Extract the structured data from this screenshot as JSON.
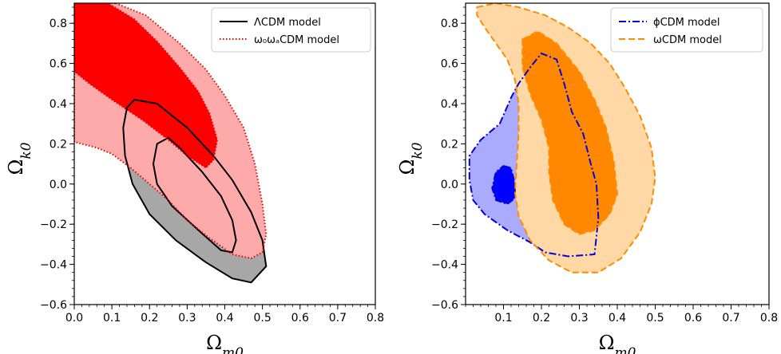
{
  "chart_data": [
    {
      "type": "contour",
      "xlabel": "Ω_m0",
      "ylabel": "Ω_k0",
      "xlim": [
        0.0,
        0.8
      ],
      "ylim": [
        -0.6,
        0.9
      ],
      "xticks": [
        "0.0",
        "0.1",
        "0.2",
        "0.3",
        "0.4",
        "0.5",
        "0.6",
        "0.7",
        "0.8"
      ],
      "yticks": [
        "−0.6",
        "−0.4",
        "−0.2",
        "0.0",
        "0.2",
        "0.4",
        "0.6",
        "0.8"
      ],
      "legend": [
        "ΛCDM model",
        "ω₀ωₐCDM model"
      ],
      "legend_position": "top-right",
      "series": [
        {
          "name": "ΛCDM model",
          "style": "solid",
          "color": "#000000",
          "contours": [
            {
              "level": "1σ",
              "fill": null,
              "points": [
                [
                  0.25,
                  0.23
                ],
                [
                  0.28,
                  0.18
                ],
                [
                  0.34,
                  0.06
                ],
                [
                  0.39,
                  -0.06
                ],
                [
                  0.42,
                  -0.18
                ],
                [
                  0.43,
                  -0.28
                ],
                [
                  0.42,
                  -0.34
                ],
                [
                  0.39,
                  -0.33
                ],
                [
                  0.33,
                  -0.23
                ],
                [
                  0.26,
                  -0.11
                ],
                [
                  0.22,
                  0.0
                ],
                [
                  0.21,
                  0.1
                ],
                [
                  0.22,
                  0.2
                ]
              ]
            },
            {
              "level": "2σ",
              "fill": "#a7a7a7",
              "points": [
                [
                  0.16,
                  0.42
                ],
                [
                  0.22,
                  0.4
                ],
                [
                  0.3,
                  0.28
                ],
                [
                  0.37,
                  0.14
                ],
                [
                  0.42,
                  0.02
                ],
                [
                  0.47,
                  -0.14
                ],
                [
                  0.5,
                  -0.28
                ],
                [
                  0.51,
                  -0.41
                ],
                [
                  0.47,
                  -0.49
                ],
                [
                  0.42,
                  -0.47
                ],
                [
                  0.35,
                  -0.39
                ],
                [
                  0.27,
                  -0.28
                ],
                [
                  0.2,
                  -0.15
                ],
                [
                  0.155,
                  0.0
                ],
                [
                  0.135,
                  0.14
                ],
                [
                  0.13,
                  0.28
                ],
                [
                  0.14,
                  0.38
                ]
              ]
            }
          ]
        },
        {
          "name": "ω₀ωₐCDM model",
          "style": "dotted",
          "color": "#e80000",
          "contours": [
            {
              "level": "1σ",
              "fill": "#ff0000",
              "points": [
                [
                  0.0,
                  0.9
                ],
                [
                  0.09,
                  0.9
                ],
                [
                  0.16,
                  0.82
                ],
                [
                  0.22,
                  0.71
                ],
                [
                  0.28,
                  0.58
                ],
                [
                  0.33,
                  0.46
                ],
                [
                  0.36,
                  0.35
                ],
                [
                  0.38,
                  0.22
                ],
                [
                  0.37,
                  0.12
                ],
                [
                  0.35,
                  0.08
                ],
                [
                  0.3,
                  0.14
                ],
                [
                  0.25,
                  0.22
                ],
                [
                  0.18,
                  0.32
                ],
                [
                  0.1,
                  0.42
                ],
                [
                  0.04,
                  0.5
                ],
                [
                  0.0,
                  0.56
                ]
              ]
            },
            {
              "level": "2σ",
              "fill": "#ffaaaa",
              "points": [
                [
                  0.11,
                  0.9
                ],
                [
                  0.19,
                  0.84
                ],
                [
                  0.28,
                  0.7
                ],
                [
                  0.35,
                  0.57
                ],
                [
                  0.4,
                  0.44
                ],
                [
                  0.45,
                  0.28
                ],
                [
                  0.48,
                  0.1
                ],
                [
                  0.5,
                  -0.1
                ],
                [
                  0.51,
                  -0.25
                ],
                [
                  0.5,
                  -0.34
                ],
                [
                  0.47,
                  -0.37
                ],
                [
                  0.42,
                  -0.35
                ],
                [
                  0.36,
                  -0.27
                ],
                [
                  0.3,
                  -0.18
                ],
                [
                  0.25,
                  -0.08
                ],
                [
                  0.2,
                  0.0
                ],
                [
                  0.15,
                  0.08
                ],
                [
                  0.1,
                  0.15
                ],
                [
                  0.06,
                  0.18
                ],
                [
                  0.02,
                  0.2
                ],
                [
                  0.0,
                  0.21
                ],
                [
                  0.0,
                  0.9
                ]
              ]
            }
          ]
        }
      ]
    },
    {
      "type": "contour",
      "xlabel": "Ω_m0",
      "ylabel": "Ω_k0",
      "xlim": [
        0.0,
        0.8
      ],
      "ylim": [
        -0.6,
        0.9
      ],
      "xticks": [
        "0.1",
        "0.2",
        "0.3",
        "0.4",
        "0.5",
        "0.6",
        "0.7",
        "0.8"
      ],
      "yticks": [
        "−0.6",
        "−0.4",
        "−0.2",
        "0.0",
        "0.2",
        "0.4",
        "0.6",
        "0.8"
      ],
      "legend": [
        "ϕCDM model",
        "ωCDM model"
      ],
      "legend_position": "top-right",
      "series": [
        {
          "name": "ϕCDM model",
          "style": "dashdot",
          "color": "#0000dd",
          "contours": [
            {
              "level": "1σ",
              "fill": "#0000ff",
              "points": [
                [
                  0.1,
                  0.09
                ],
                [
                  0.12,
                  0.08
                ],
                [
                  0.13,
                  0.0
                ],
                [
                  0.13,
                  -0.07
                ],
                [
                  0.11,
                  -0.1
                ],
                [
                  0.08,
                  -0.08
                ],
                [
                  0.07,
                  -0.02
                ],
                [
                  0.08,
                  0.06
                ]
              ]
            },
            {
              "level": "2σ",
              "fill": "#aaaaff",
              "points": [
                [
                  0.09,
                  0.3
                ],
                [
                  0.12,
                  0.43
                ],
                [
                  0.14,
                  0.5
                ],
                [
                  0.17,
                  0.58
                ],
                [
                  0.2,
                  0.65
                ],
                [
                  0.24,
                  0.62
                ],
                [
                  0.26,
                  0.5
                ],
                [
                  0.28,
                  0.36
                ],
                [
                  0.31,
                  0.25
                ],
                [
                  0.33,
                  0.1
                ],
                [
                  0.345,
                  0.0
                ],
                [
                  0.35,
                  -0.17
                ],
                [
                  0.34,
                  -0.35
                ],
                [
                  0.27,
                  -0.36
                ],
                [
                  0.21,
                  -0.34
                ],
                [
                  0.17,
                  -0.29
                ],
                [
                  0.11,
                  -0.23
                ],
                [
                  0.05,
                  -0.15
                ],
                [
                  0.02,
                  -0.08
                ],
                [
                  0.01,
                  0.02
                ],
                [
                  0.01,
                  0.14
                ],
                [
                  0.04,
                  0.22
                ]
              ]
            }
          ]
        },
        {
          "name": "ωCDM model",
          "style": "dashed",
          "color": "#ff8c00",
          "contours": [
            {
              "level": "1σ",
              "fill": "#ff8800",
              "points": [
                [
                  0.15,
                  0.72
                ],
                [
                  0.19,
                  0.76
                ],
                [
                  0.24,
                  0.7
                ],
                [
                  0.3,
                  0.56
                ],
                [
                  0.34,
                  0.42
                ],
                [
                  0.37,
                  0.28
                ],
                [
                  0.39,
                  0.12
                ],
                [
                  0.4,
                  -0.05
                ],
                [
                  0.38,
                  -0.15
                ],
                [
                  0.34,
                  -0.23
                ],
                [
                  0.3,
                  -0.25
                ],
                [
                  0.26,
                  -0.2
                ],
                [
                  0.23,
                  -0.08
                ],
                [
                  0.22,
                  0.06
                ],
                [
                  0.22,
                  0.18
                ],
                [
                  0.2,
                  0.32
                ],
                [
                  0.17,
                  0.45
                ],
                [
                  0.15,
                  0.58
                ]
              ]
            },
            {
              "level": "2σ",
              "fill": "#ffd8a6",
              "points": [
                [
                  0.03,
                  0.88
                ],
                [
                  0.08,
                  0.9
                ],
                [
                  0.14,
                  0.88
                ],
                [
                  0.21,
                  0.84
                ],
                [
                  0.27,
                  0.78
                ],
                [
                  0.33,
                  0.7
                ],
                [
                  0.38,
                  0.6
                ],
                [
                  0.42,
                  0.48
                ],
                [
                  0.46,
                  0.34
                ],
                [
                  0.49,
                  0.18
                ],
                [
                  0.5,
                  0.03
                ],
                [
                  0.49,
                  -0.1
                ],
                [
                  0.46,
                  -0.24
                ],
                [
                  0.41,
                  -0.37
                ],
                [
                  0.35,
                  -0.44
                ],
                [
                  0.28,
                  -0.44
                ],
                [
                  0.22,
                  -0.38
                ],
                [
                  0.17,
                  -0.28
                ],
                [
                  0.14,
                  -0.16
                ],
                [
                  0.13,
                  -0.04
                ],
                [
                  0.135,
                  0.1
                ],
                [
                  0.14,
                  0.26
                ],
                [
                  0.14,
                  0.4
                ],
                [
                  0.13,
                  0.52
                ],
                [
                  0.11,
                  0.62
                ],
                [
                  0.08,
                  0.7
                ],
                [
                  0.05,
                  0.78
                ],
                [
                  0.03,
                  0.84
                ]
              ]
            }
          ]
        }
      ]
    }
  ]
}
